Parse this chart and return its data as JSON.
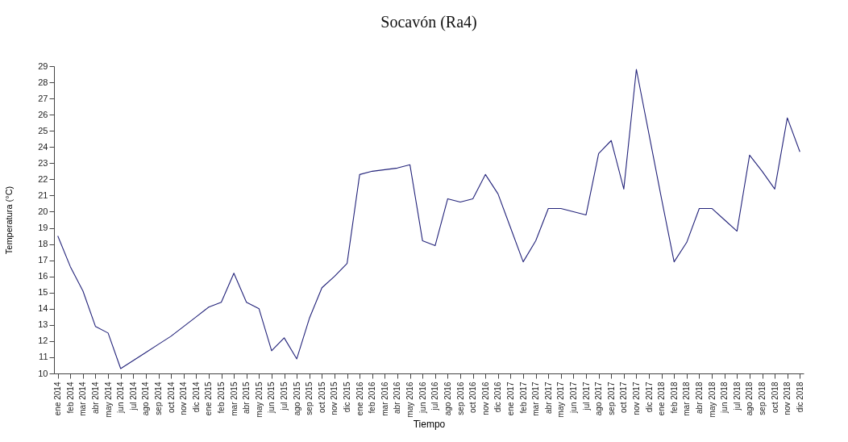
{
  "chart_data": {
    "type": "line",
    "title": "Socavón (Ra4)",
    "xlabel": "Tiempo",
    "ylabel": "Temperatura (°C)",
    "categories": [
      "ene 2014",
      "feb 2014",
      "mar 2014",
      "abr 2014",
      "may 2014",
      "jun 2014",
      "jul 2014",
      "ago 2014",
      "sep 2014",
      "oct 2014",
      "nov 2014",
      "dic 2014",
      "ene 2015",
      "feb 2015",
      "mar 2015",
      "abr 2015",
      "may 2015",
      "jun 2015",
      "jul 2015",
      "ago 2015",
      "sep 2015",
      "oct 2015",
      "nov 2015",
      "dic 2015",
      "ene 2016",
      "feb 2016",
      "mar 2016",
      "abr 2016",
      "may 2016",
      "jun 2016",
      "jul 2016",
      "ago 2016",
      "sep 2016",
      "oct 2016",
      "nov 2016",
      "dic 2016",
      "ene 2017",
      "feb 2017",
      "mar 2017",
      "abr 2017",
      "may 2017",
      "jun 2017",
      "jul 2017",
      "ago 2017",
      "sep 2017",
      "oct 2017",
      "nov 2017",
      "dic 2017",
      "ene 2018",
      "feb 2018",
      "mar 2018",
      "abr 2018",
      "may 2018",
      "jun 2018",
      "jul 2018",
      "ago 2018",
      "sep 2018",
      "oct 2018",
      "nov 2018",
      "dic 2018"
    ],
    "series": [
      {
        "color": "#23237a",
        "values": [
          18.5,
          16.6,
          15.1,
          12.9,
          12.5,
          10.3,
          10.8,
          11.3,
          11.8,
          12.3,
          12.9,
          13.5,
          14.1,
          14.4,
          16.2,
          14.4,
          14.0,
          11.4,
          12.2,
          10.9,
          13.4,
          15.3,
          16.0,
          16.8,
          22.3,
          22.5,
          22.6,
          22.7,
          22.9,
          18.2,
          17.9,
          20.8,
          20.6,
          20.8,
          22.3,
          21.1,
          19.0,
          16.9,
          18.2,
          20.2,
          20.2,
          20.0,
          19.8,
          23.6,
          24.4,
          21.4,
          28.8,
          24.8,
          20.8,
          16.9,
          18.1,
          20.2,
          20.2,
          19.5,
          18.8,
          23.5,
          22.5,
          21.4,
          25.8,
          23.7
        ]
      }
    ],
    "ylim": [
      10,
      29
    ],
    "yticks": [
      10,
      11,
      12,
      13,
      14,
      15,
      16,
      17,
      18,
      19,
      20,
      21,
      22,
      23,
      24,
      25,
      26,
      27,
      28,
      29
    ],
    "grid": false,
    "marker": "none",
    "line_style": "solid"
  }
}
